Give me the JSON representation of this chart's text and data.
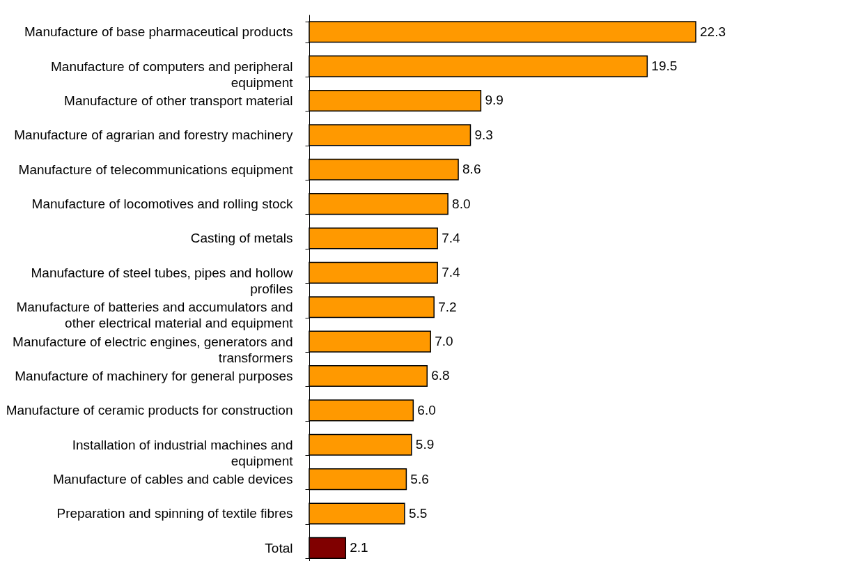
{
  "chart_data": {
    "type": "bar",
    "orientation": "horizontal",
    "value_labels": [
      "22.3",
      "19.5",
      "9.9",
      "9.3",
      "8.6",
      "8.0",
      "7.4",
      "7.4",
      "7.2",
      "7.0",
      "6.8",
      "6.0",
      "5.9",
      "5.6",
      "5.5",
      "2.1"
    ],
    "categories": [
      "Manufacture of base pharmaceutical products",
      "Manufacture of computers and peripheral equipment",
      "Manufacture of other transport material",
      "Manufacture of agrarian and forestry machinery",
      "Manufacture of telecommunications equipment",
      "Manufacture of locomotives and rolling stock",
      "Casting of metals",
      "Manufacture of steel tubes, pipes and hollow profiles",
      "Manufacture of batteries and accumulators and other electrical material and equipment",
      "Manufacture of electric engines, generators and transformers",
      "Manufacture of machinery for general purposes",
      "Manufacture of ceramic products for construction",
      "Installation of industrial machines and equipment",
      "Manufacture of cables and cable devices",
      "Preparation and spinning of textile fibres",
      "Total"
    ],
    "values": [
      22.3,
      19.5,
      9.9,
      9.3,
      8.6,
      8.0,
      7.4,
      7.4,
      7.2,
      7.0,
      6.8,
      6.0,
      5.9,
      5.6,
      5.5,
      2.1
    ],
    "colors": [
      "#ff9900",
      "#ff9900",
      "#ff9900",
      "#ff9900",
      "#ff9900",
      "#ff9900",
      "#ff9900",
      "#ff9900",
      "#ff9900",
      "#ff9900",
      "#ff9900",
      "#ff9900",
      "#ff9900",
      "#ff9900",
      "#ff9900",
      "#800000"
    ]
  }
}
